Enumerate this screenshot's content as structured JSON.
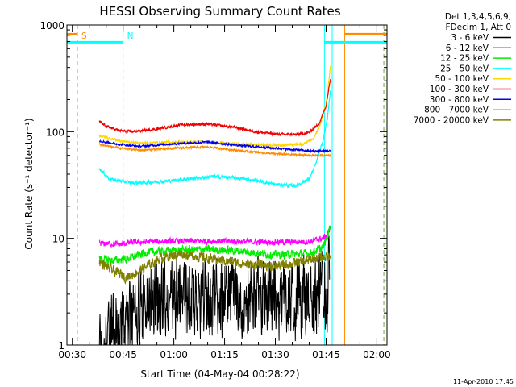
{
  "chart_data": {
    "type": "line",
    "title": "HESSI Observing Summary Count Rates",
    "xlabel": "Start Time (04-May-04 00:28:22)",
    "ylabel": "Count Rate (s⁻¹ detector⁻¹)",
    "yscale": "log",
    "ylim": [
      1,
      1000
    ],
    "xlim_minutes": [
      28.4,
      123
    ],
    "x_ticks": [
      {
        "t": 30,
        "label": "00:30"
      },
      {
        "t": 45,
        "label": "00:45"
      },
      {
        "t": 60,
        "label": "01:00"
      },
      {
        "t": 75,
        "label": "01:15"
      },
      {
        "t": 90,
        "label": "01:30"
      },
      {
        "t": 105,
        "label": "01:45"
      },
      {
        "t": 120,
        "label": "02:00"
      }
    ],
    "y_ticks": [
      {
        "v": 1,
        "label": "1"
      },
      {
        "v": 10,
        "label": "10"
      },
      {
        "v": 100,
        "label": "100"
      },
      {
        "v": 1000,
        "label": "1000"
      }
    ],
    "legend_header": [
      "Det 1,3,4,5,6,9,",
      "FDecim 1, Att 0"
    ],
    "legend_position": "right",
    "grid": false,
    "series": [
      {
        "name": "3 - 6 keV",
        "color": "#000000",
        "t": [
          38,
          40,
          44,
          46,
          48,
          55,
          60,
          68,
          75,
          82,
          90,
          98,
          103,
          105,
          106
        ],
        "y": [
          1,
          1.2,
          1.4,
          1.5,
          2.2,
          2.5,
          2.6,
          2.8,
          3.0,
          2.8,
          2.7,
          2.6,
          2.8,
          3.2,
          5.0
        ]
      },
      {
        "name": "6 - 12 keV",
        "color": "#ff00ff",
        "t": [
          38,
          44,
          48,
          60,
          75,
          90,
          100,
          104,
          105.5,
          106.3
        ],
        "y": [
          9.0,
          8.8,
          9.2,
          9.4,
          9.4,
          9.2,
          9.3,
          10.0,
          11.0,
          13.0
        ]
      },
      {
        "name": "12 - 25 keV",
        "color": "#00ee00",
        "t": [
          38,
          42,
          46,
          52,
          60,
          70,
          80,
          90,
          100,
          104,
          105.5,
          106.3
        ],
        "y": [
          6.5,
          6.2,
          6.4,
          7.4,
          7.7,
          7.9,
          7.6,
          7.0,
          7.2,
          8.2,
          10.5,
          14.0
        ]
      },
      {
        "name": "25 - 50 keV",
        "color": "#00ffff",
        "t": [
          38,
          41,
          48,
          56,
          64,
          72,
          78,
          84,
          90,
          96,
          100,
          102,
          104,
          105.5,
          106.3
        ],
        "y": [
          45,
          36,
          33,
          34,
          36,
          38,
          37,
          35,
          32,
          31,
          36,
          50,
          80,
          140,
          250
        ]
      },
      {
        "name": "50 - 100 keV",
        "color": "#ffd700",
        "t": [
          38,
          44,
          50,
          60,
          70,
          80,
          90,
          98,
          101,
          103,
          105,
          106.3
        ],
        "y": [
          92,
          82,
          78,
          80,
          80,
          76,
          75,
          76,
          85,
          110,
          180,
          410
        ]
      },
      {
        "name": "100 - 300 keV",
        "color": "#ee0000",
        "t": [
          38,
          40,
          44,
          48,
          55,
          62,
          70,
          78,
          84,
          90,
          96,
          100,
          103,
          105,
          106.3
        ],
        "y": [
          125,
          112,
          102,
          100,
          106,
          116,
          118,
          110,
          100,
          95,
          94,
          98,
          120,
          175,
          320
        ]
      },
      {
        "name": "300 - 800 keV",
        "color": "#0000ee",
        "t": [
          38,
          44,
          50,
          60,
          70,
          80,
          90,
          100,
          106.3
        ],
        "y": [
          82,
          76,
          73,
          77,
          80,
          74,
          70,
          66,
          66
        ]
      },
      {
        "name": "800 - 7000 keV",
        "color": "#ff8c00",
        "t": [
          38,
          44,
          50,
          60,
          70,
          80,
          90,
          100,
          106.3
        ],
        "y": [
          76,
          70,
          67,
          70,
          72,
          66,
          62,
          60,
          60
        ]
      },
      {
        "name": "7000 - 20000 keV",
        "color": "#808000",
        "t": [
          38,
          42,
          46,
          50,
          56,
          62,
          70,
          80,
          90,
          98,
          102,
          105.5,
          106.3
        ],
        "y": [
          6.0,
          5.0,
          4.3,
          5.0,
          6.5,
          7.2,
          6.5,
          5.8,
          5.5,
          6.0,
          6.5,
          6.8,
          7.0
        ]
      }
    ],
    "annotations": [
      {
        "label": "S",
        "color": "#ff8c00",
        "t": 31.5
      },
      {
        "label": "N",
        "color": "#00ffff",
        "t": 45
      }
    ],
    "flag_bars": [
      {
        "color": "#ff8c00",
        "y": 820,
        "t_start": 28.4,
        "t_end": 31.5
      },
      {
        "color": "#ff8c00",
        "y": 820,
        "t_start": 110.5,
        "t_end": 123
      },
      {
        "color": "#00ffff",
        "y": 690,
        "t_start": 28.4,
        "t_end": 45
      },
      {
        "color": "#00ffff",
        "y": 690,
        "t_start": 104.5,
        "t_end": 123
      }
    ],
    "event_lines": [
      {
        "color": "#ff8c00",
        "t": 31.5,
        "style": "dashed"
      },
      {
        "color": "#00ffff",
        "t": 45,
        "style": "dashed"
      },
      {
        "color": "#00ffff",
        "t": 104.5,
        "style": "solid"
      },
      {
        "color": "#00ffff",
        "t": 106.8,
        "style": "solid"
      },
      {
        "color": "#ff8c00",
        "t": 110.5,
        "style": "solid"
      },
      {
        "color": "#00ffff",
        "t": 122,
        "style": "dashed"
      },
      {
        "color": "#ff8c00",
        "t": 122.3,
        "style": "dashed"
      }
    ]
  },
  "footer_date": "11-Apr-2010 17:45"
}
